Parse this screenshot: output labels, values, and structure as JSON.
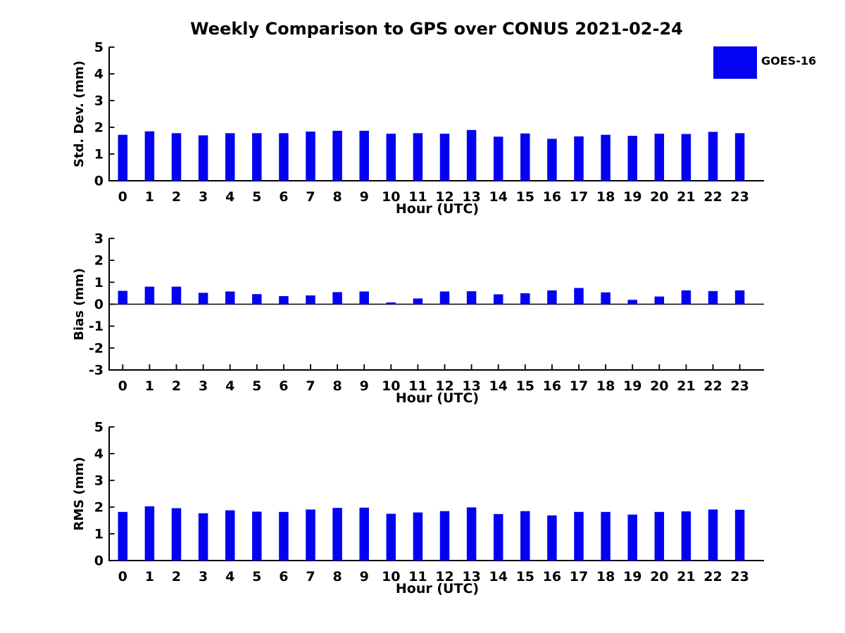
{
  "title": "Weekly Comparison to GPS over CONUS 2021-02-24",
  "legend": {
    "label": "GOES-16",
    "swatch_color": "#0303F2",
    "position": "upper right"
  },
  "colors": {
    "bar": "#0303F2",
    "axis": "#000000",
    "text": "#000000",
    "background": "#FFFFFF"
  },
  "chart_data": [
    {
      "type": "bar",
      "name": "std-dev",
      "title": "",
      "xlabel": "Hour (UTC)",
      "ylabel": "Std. Dev. (mm)",
      "ylim": [
        0,
        5
      ],
      "yticks": [
        0,
        1,
        2,
        3,
        4,
        5
      ],
      "grid": false,
      "zero_line": false,
      "categories": [
        "0",
        "1",
        "2",
        "3",
        "4",
        "5",
        "6",
        "7",
        "8",
        "9",
        "10",
        "11",
        "12",
        "13",
        "14",
        "15",
        "16",
        "17",
        "18",
        "19",
        "20",
        "21",
        "22",
        "23"
      ],
      "series": [
        {
          "name": "GOES-16",
          "values": [
            1.72,
            1.85,
            1.78,
            1.7,
            1.78,
            1.78,
            1.78,
            1.84,
            1.87,
            1.87,
            1.76,
            1.78,
            1.76,
            1.9,
            1.65,
            1.77,
            1.57,
            1.66,
            1.72,
            1.68,
            1.76,
            1.75,
            1.83,
            1.78
          ]
        }
      ]
    },
    {
      "type": "bar",
      "name": "bias",
      "title": "",
      "xlabel": "Hour (UTC)",
      "ylabel": "Bias (mm)",
      "ylim": [
        -3,
        3
      ],
      "yticks": [
        -3,
        -2,
        -1,
        0,
        1,
        2,
        3
      ],
      "grid": false,
      "zero_line": true,
      "categories": [
        "0",
        "1",
        "2",
        "3",
        "4",
        "5",
        "6",
        "7",
        "8",
        "9",
        "10",
        "11",
        "12",
        "13",
        "14",
        "15",
        "16",
        "17",
        "18",
        "19",
        "20",
        "21",
        "22",
        "23"
      ],
      "series": [
        {
          "name": "GOES-16",
          "values": [
            0.61,
            0.8,
            0.8,
            0.52,
            0.58,
            0.46,
            0.37,
            0.4,
            0.55,
            0.58,
            0.08,
            0.26,
            0.58,
            0.59,
            0.45,
            0.5,
            0.63,
            0.74,
            0.54,
            0.2,
            0.35,
            0.63,
            0.6,
            0.63
          ]
        }
      ]
    },
    {
      "type": "bar",
      "name": "rms",
      "title": "",
      "xlabel": "Hour (UTC)",
      "ylabel": "RMS (mm)",
      "ylim": [
        0,
        5
      ],
      "yticks": [
        0,
        1,
        2,
        3,
        4,
        5
      ],
      "grid": false,
      "zero_line": false,
      "categories": [
        "0",
        "1",
        "2",
        "3",
        "4",
        "5",
        "6",
        "7",
        "8",
        "9",
        "10",
        "11",
        "12",
        "13",
        "14",
        "15",
        "16",
        "17",
        "18",
        "19",
        "20",
        "21",
        "22",
        "23"
      ],
      "series": [
        {
          "name": "GOES-16",
          "values": [
            1.82,
            2.03,
            1.96,
            1.77,
            1.88,
            1.83,
            1.82,
            1.91,
            1.97,
            1.98,
            1.75,
            1.8,
            1.85,
            1.99,
            1.74,
            1.85,
            1.69,
            1.82,
            1.82,
            1.72,
            1.82,
            1.84,
            1.91,
            1.9
          ]
        }
      ]
    }
  ]
}
